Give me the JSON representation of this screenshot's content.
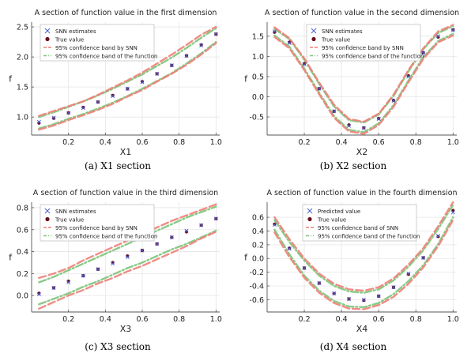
{
  "captions": [
    "(a) X1 section",
    "(b) X2 section",
    "(c) X3 section",
    "(d) X4 section"
  ],
  "chart_data": [
    {
      "type": "scatter",
      "title": "A section of function value in the first dimension",
      "xlabel": "X1",
      "ylabel": "f",
      "xlim": [
        0.0,
        1.02
      ],
      "ylim": [
        0.7,
        2.58
      ],
      "xticks": [
        "0.2",
        "0.4",
        "0.6",
        "0.8",
        "1.0"
      ],
      "xtick_values": [
        0.2,
        0.4,
        0.6,
        0.8,
        1.0
      ],
      "yticks": [
        "1.0",
        "1.5",
        "2.0",
        "2.5"
      ],
      "ytick_values": [
        1.0,
        1.5,
        2.0,
        2.5
      ],
      "grid": true,
      "legend_position": "top-left",
      "legend": [
        "SNN estimates",
        "True value",
        "95% confidence band by SNN",
        "95% confidence band of the function"
      ],
      "x": [
        0.04,
        0.12,
        0.2,
        0.28,
        0.36,
        0.44,
        0.52,
        0.6,
        0.68,
        0.76,
        0.84,
        0.92,
        1.0
      ],
      "snn_estimates": [
        0.92,
        0.99,
        1.07,
        1.15,
        1.25,
        1.35,
        1.47,
        1.58,
        1.72,
        1.86,
        2.02,
        2.19,
        2.38
      ],
      "true_values": [
        0.9,
        0.98,
        1.07,
        1.16,
        1.25,
        1.36,
        1.47,
        1.59,
        1.72,
        1.86,
        2.02,
        2.2,
        2.38
      ],
      "band_snn_upper": [
        1.02,
        1.1,
        1.18,
        1.26,
        1.37,
        1.49,
        1.61,
        1.74,
        1.89,
        2.04,
        2.2,
        2.37,
        2.5
      ],
      "band_snn_lower": [
        0.79,
        0.86,
        0.95,
        1.03,
        1.12,
        1.22,
        1.34,
        1.45,
        1.59,
        1.72,
        1.87,
        2.04,
        2.23
      ],
      "band_func_upper": [
        1.0,
        1.08,
        1.17,
        1.26,
        1.36,
        1.47,
        1.59,
        1.71,
        1.85,
        1.99,
        2.15,
        2.32,
        2.48
      ],
      "band_func_lower": [
        0.81,
        0.88,
        0.97,
        1.05,
        1.14,
        1.24,
        1.35,
        1.47,
        1.6,
        1.73,
        1.89,
        2.06,
        2.25
      ]
    },
    {
      "type": "scatter",
      "title": "A section of function value in the second dimension",
      "xlabel": "X2",
      "ylabel": "f",
      "xlim": [
        0.0,
        1.02
      ],
      "ylim": [
        -0.95,
        1.85
      ],
      "xticks": [
        "0.2",
        "0.4",
        "0.6",
        "0.8",
        "1.0"
      ],
      "xtick_values": [
        0.2,
        0.4,
        0.6,
        0.8,
        1.0
      ],
      "yticks": [
        "-0.5",
        "0.0",
        "0.5",
        "1.0",
        "1.5"
      ],
      "ytick_values": [
        -0.5,
        0.0,
        0.5,
        1.0,
        1.5
      ],
      "grid": true,
      "legend_position": "top-center",
      "legend": [
        "SNN estimates",
        "True value",
        "95% confidence band by SNN",
        "95% confidence band of the function"
      ],
      "x": [
        0.04,
        0.12,
        0.2,
        0.28,
        0.36,
        0.44,
        0.52,
        0.6,
        0.68,
        0.76,
        0.84,
        0.92,
        1.0
      ],
      "snn_estimates": [
        1.62,
        1.33,
        0.8,
        0.2,
        -0.36,
        -0.72,
        -0.78,
        -0.55,
        -0.1,
        0.5,
        1.08,
        1.5,
        1.65
      ],
      "true_values": [
        1.6,
        1.35,
        0.82,
        0.2,
        -0.36,
        -0.7,
        -0.77,
        -0.54,
        -0.09,
        0.52,
        1.09,
        1.48,
        1.66
      ],
      "band_snn_upper": [
        1.72,
        1.45,
        0.95,
        0.35,
        -0.2,
        -0.55,
        -0.62,
        -0.42,
        0.05,
        0.66,
        1.2,
        1.62,
        1.78
      ],
      "band_snn_lower": [
        1.48,
        1.2,
        0.66,
        0.06,
        -0.52,
        -0.86,
        -0.92,
        -0.7,
        -0.25,
        0.36,
        0.94,
        1.35,
        1.52
      ],
      "band_func_upper": [
        1.68,
        1.43,
        0.92,
        0.32,
        -0.24,
        -0.58,
        -0.64,
        -0.44,
        0.02,
        0.63,
        1.18,
        1.58,
        1.75
      ],
      "band_func_lower": [
        1.52,
        1.24,
        0.7,
        0.1,
        -0.48,
        -0.82,
        -0.88,
        -0.66,
        -0.21,
        0.4,
        0.98,
        1.38,
        1.56
      ]
    },
    {
      "type": "scatter",
      "title": "A section of function value in the third dimension",
      "xlabel": "X3",
      "ylabel": "f",
      "xlim": [
        0.0,
        1.02
      ],
      "ylim": [
        -0.15,
        0.85
      ],
      "xticks": [
        "0.2",
        "0.4",
        "0.6",
        "0.8",
        "1.0"
      ],
      "xtick_values": [
        0.2,
        0.4,
        0.6,
        0.8,
        1.0
      ],
      "yticks": [
        "0.0",
        "0.2",
        "0.4",
        "0.6",
        "0.8"
      ],
      "ytick_values": [
        0.0,
        0.2,
        0.4,
        0.6,
        0.8
      ],
      "grid": true,
      "legend_position": "top-left",
      "legend": [
        "SNN estimates",
        "True value",
        "95% confidence band by SNN",
        "95% confidence band of the function"
      ],
      "x": [
        0.04,
        0.12,
        0.2,
        0.28,
        0.36,
        0.44,
        0.52,
        0.6,
        0.68,
        0.76,
        0.84,
        0.92,
        1.0
      ],
      "snn_estimates": [
        0.01,
        0.07,
        0.12,
        0.18,
        0.24,
        0.29,
        0.35,
        0.41,
        0.47,
        0.53,
        0.59,
        0.64,
        0.7
      ],
      "true_values": [
        0.02,
        0.07,
        0.13,
        0.18,
        0.24,
        0.3,
        0.36,
        0.41,
        0.47,
        0.53,
        0.58,
        0.64,
        0.7
      ],
      "band_snn_upper": [
        0.16,
        0.2,
        0.25,
        0.32,
        0.38,
        0.44,
        0.5,
        0.56,
        0.62,
        0.68,
        0.73,
        0.78,
        0.83
      ],
      "band_snn_lower": [
        -0.12,
        -0.06,
        0.0,
        0.05,
        0.11,
        0.16,
        0.22,
        0.27,
        0.33,
        0.39,
        0.45,
        0.52,
        0.58
      ],
      "band_func_upper": [
        0.12,
        0.17,
        0.23,
        0.29,
        0.35,
        0.41,
        0.47,
        0.53,
        0.59,
        0.65,
        0.71,
        0.76,
        0.81
      ],
      "band_func_lower": [
        -0.08,
        -0.03,
        0.02,
        0.08,
        0.13,
        0.19,
        0.25,
        0.3,
        0.36,
        0.42,
        0.47,
        0.53,
        0.59
      ]
    },
    {
      "type": "scatter",
      "title": "A section of function value in the fourth dimension",
      "xlabel": "X4",
      "ylabel": "f",
      "xlim": [
        0.0,
        1.02
      ],
      "ylim": [
        -0.78,
        0.82
      ],
      "xticks": [
        "0.2",
        "0.4",
        "0.6",
        "0.8",
        "1.0"
      ],
      "xtick_values": [
        0.2,
        0.4,
        0.6,
        0.8,
        1.0
      ],
      "yticks": [
        "-0.6",
        "-0.4",
        "-0.2",
        "0.0",
        "0.2",
        "0.4",
        "0.6"
      ],
      "ytick_values": [
        -0.6,
        -0.4,
        -0.2,
        0.0,
        0.2,
        0.4,
        0.6
      ],
      "grid": true,
      "legend_position": "top-center",
      "legend": [
        "Predicted value",
        "True value",
        "95% confidence band of SNN",
        "95% confidence band of the function"
      ],
      "x": [
        0.04,
        0.12,
        0.2,
        0.28,
        0.36,
        0.44,
        0.52,
        0.6,
        0.68,
        0.76,
        0.84,
        0.92,
        1.0
      ],
      "snn_estimates": [
        0.49,
        0.14,
        -0.14,
        -0.36,
        -0.51,
        -0.59,
        -0.6,
        -0.55,
        -0.42,
        -0.22,
        0.01,
        0.33,
        0.67
      ],
      "true_values": [
        0.5,
        0.15,
        -0.14,
        -0.36,
        -0.51,
        -0.59,
        -0.61,
        -0.55,
        -0.42,
        -0.23,
        0.01,
        0.32,
        0.7
      ],
      "band_snn_upper": [
        0.6,
        0.28,
        0.0,
        -0.22,
        -0.37,
        -0.45,
        -0.47,
        -0.42,
        -0.29,
        -0.09,
        0.15,
        0.47,
        0.82
      ],
      "band_snn_lower": [
        0.38,
        0.02,
        -0.28,
        -0.5,
        -0.65,
        -0.73,
        -0.74,
        -0.68,
        -0.56,
        -0.37,
        -0.13,
        0.18,
        0.56
      ],
      "band_func_upper": [
        0.56,
        0.24,
        -0.03,
        -0.25,
        -0.4,
        -0.48,
        -0.5,
        -0.45,
        -0.32,
        -0.12,
        0.12,
        0.43,
        0.78
      ],
      "band_func_lower": [
        0.42,
        0.06,
        -0.25,
        -0.47,
        -0.62,
        -0.7,
        -0.71,
        -0.65,
        -0.52,
        -0.33,
        -0.1,
        0.21,
        0.6
      ]
    }
  ],
  "colors": {
    "estimate": "#4a5fd9",
    "true_value": "#6b0f1a",
    "band_snn": "#ee7f78",
    "band_func": "#7cc47a",
    "grid": "#e6e6e6",
    "axis": "#555555"
  }
}
